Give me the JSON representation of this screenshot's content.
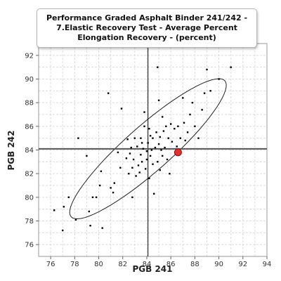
{
  "chart_data": {
    "type": "scatter",
    "title": "Performance Graded Asphalt Binder 241/242 - 7.Elastic Recovery Test - Average Percent Elongation Recovery - (percent)",
    "xlabel": "PGB 241",
    "ylabel": "PGB 242",
    "xlim": [
      75,
      94
    ],
    "ylim": [
      75,
      93
    ],
    "x_ticks": [
      76,
      78,
      80,
      82,
      84,
      86,
      88,
      90,
      92,
      94
    ],
    "y_ticks": [
      76,
      78,
      80,
      82,
      84,
      86,
      88,
      90,
      92
    ],
    "grid": true,
    "reference_lines": {
      "x_mean": 84.1,
      "y_mean": 84.1
    },
    "highlight_point": {
      "x": 86.6,
      "y": 83.8,
      "color": "#e03030"
    },
    "ellipse": {
      "cx": 84.1,
      "cy": 84.1,
      "semi_major": 8.6,
      "semi_minor": 1.9,
      "angle_deg": 42
    },
    "series": [
      {
        "point_color": "#000000",
        "points": [
          [
            76.3,
            78.9
          ],
          [
            77.0,
            77.2
          ],
          [
            77.1,
            79.2
          ],
          [
            77.5,
            80.0
          ],
          [
            78.1,
            78.1
          ],
          [
            78.3,
            85.0
          ],
          [
            79.0,
            83.5
          ],
          [
            79.2,
            78.8
          ],
          [
            79.3,
            77.6
          ],
          [
            79.5,
            80.0
          ],
          [
            79.8,
            80.0
          ],
          [
            80.1,
            81.0
          ],
          [
            80.2,
            82.2
          ],
          [
            80.3,
            77.4
          ],
          [
            80.8,
            88.8
          ],
          [
            81.0,
            80.8
          ],
          [
            81.2,
            80.4
          ],
          [
            81.3,
            81.2
          ],
          [
            81.6,
            83.8
          ],
          [
            81.8,
            82.5
          ],
          [
            81.9,
            87.5
          ],
          [
            82.3,
            83.3
          ],
          [
            82.5,
            82.0
          ],
          [
            82.6,
            83.7
          ],
          [
            82.7,
            84.2
          ],
          [
            82.8,
            80.0
          ],
          [
            82.8,
            82.5
          ],
          [
            82.9,
            83.2
          ],
          [
            83.0,
            85.0
          ],
          [
            83.1,
            81.8
          ],
          [
            83.2,
            84.3
          ],
          [
            83.3,
            82.7
          ],
          [
            83.4,
            82.1
          ],
          [
            83.5,
            83.6
          ],
          [
            83.5,
            85.0
          ],
          [
            83.6,
            83.0
          ],
          [
            83.7,
            84.1
          ],
          [
            83.8,
            86.0
          ],
          [
            83.8,
            87.2
          ],
          [
            83.9,
            82.4
          ],
          [
            84.0,
            83.2
          ],
          [
            84.0,
            83.9
          ],
          [
            84.1,
            84.6
          ],
          [
            84.2,
            85.8
          ],
          [
            84.2,
            81.6
          ],
          [
            84.3,
            83.5
          ],
          [
            84.4,
            84.0
          ],
          [
            84.5,
            85.0
          ],
          [
            84.5,
            82.8
          ],
          [
            84.6,
            80.3
          ],
          [
            84.7,
            84.2
          ],
          [
            84.8,
            85.5
          ],
          [
            84.9,
            91.0
          ],
          [
            84.9,
            83.0
          ],
          [
            85.0,
            84.5
          ],
          [
            85.0,
            88.2
          ],
          [
            85.1,
            82.3
          ],
          [
            85.1,
            85.1
          ],
          [
            85.2,
            84.0
          ],
          [
            85.3,
            83.5
          ],
          [
            85.4,
            85.6
          ],
          [
            85.5,
            84.2
          ],
          [
            85.6,
            86.0
          ],
          [
            85.7,
            83.2
          ],
          [
            85.8,
            85.0
          ],
          [
            85.9,
            82.0
          ],
          [
            86.0,
            86.2
          ],
          [
            86.1,
            84.7
          ],
          [
            86.3,
            85.8
          ],
          [
            86.5,
            84.3
          ],
          [
            86.6,
            86.0
          ],
          [
            86.8,
            85.0
          ],
          [
            87.0,
            88.4
          ],
          [
            87.1,
            86.3
          ],
          [
            87.2,
            84.8
          ],
          [
            87.4,
            85.5
          ],
          [
            87.6,
            87.0
          ],
          [
            87.8,
            88.0
          ],
          [
            88.0,
            86.0
          ],
          [
            88.3,
            85.0
          ],
          [
            88.6,
            87.4
          ],
          [
            88.8,
            88.8
          ],
          [
            89.0,
            90.8
          ],
          [
            89.3,
            89.0
          ],
          [
            90.0,
            90.0
          ],
          [
            91.0,
            91.0
          ],
          [
            84.3,
            85.2
          ],
          [
            83.6,
            84.6
          ],
          [
            82.4,
            84.9
          ],
          [
            85.3,
            86.8
          ]
        ]
      }
    ]
  }
}
